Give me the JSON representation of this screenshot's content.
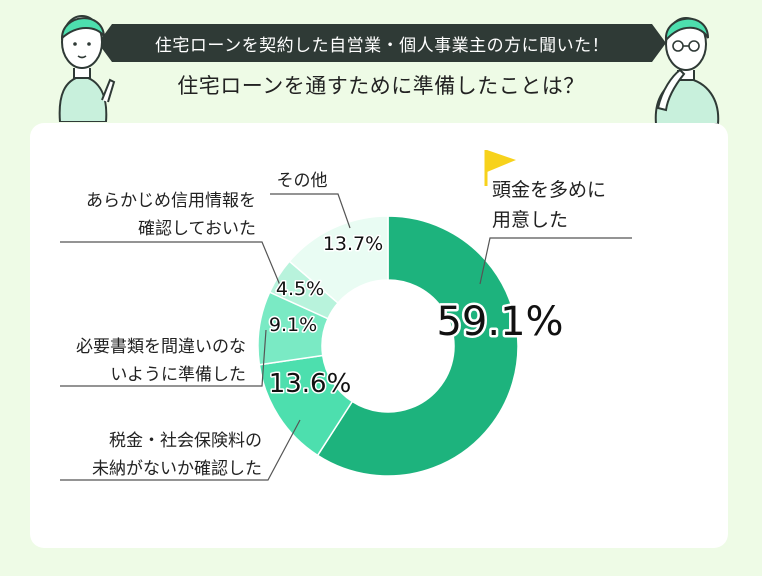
{
  "header": {
    "banner": "住宅ローンを契約した自営業・個人事業主の方に聞いた！",
    "question": "住宅ローンを通すために準備したことは？"
  },
  "colors": {
    "background": "#eefbe6",
    "banner_bg": "#2f3a36",
    "flag": "#f7d21c",
    "slices": [
      "#1db37d",
      "#4ddfae",
      "#7aeac4",
      "#b8f3dc",
      "#e9fcf3"
    ]
  },
  "chart_data": {
    "type": "pie",
    "donut": true,
    "categories": [
      "頭金を多めに用意した",
      "税金・社会保険料の未納がないか確認した",
      "必要書類を間違いのないように準備した",
      "あらかじめ信用情報を確認しておいた",
      "その他"
    ],
    "values": [
      59.1,
      13.6,
      9.1,
      4.5,
      13.7
    ],
    "value_labels": [
      "59.1%",
      "13.6%",
      "9.1%",
      "4.5%",
      "13.7%"
    ],
    "label_lines": [
      [
        "頭金を多めに",
        "用意した"
      ],
      [
        "税金・社会保険料の",
        "未納がないか確認した"
      ],
      [
        "必要書類を間違いのな",
        "いように準備した"
      ],
      [
        "あらかじめ信用情報を",
        "確認しておいた"
      ],
      [
        "その他"
      ]
    ]
  }
}
